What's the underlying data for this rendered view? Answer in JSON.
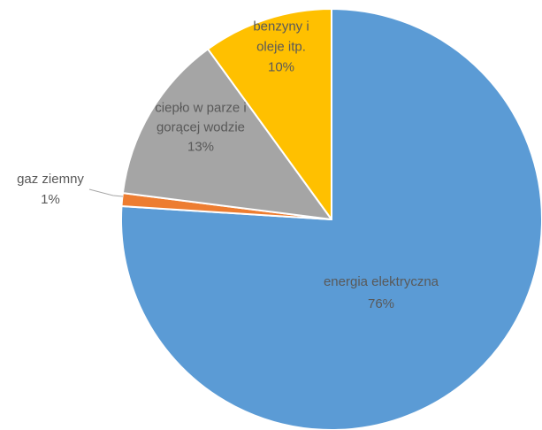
{
  "chart_data": {
    "type": "pie",
    "title": "",
    "slices": [
      {
        "name": "energia elektryczna",
        "value": 76,
        "label": "76%",
        "color": "#5B9BD5",
        "label_color": "#595959",
        "label_lines": [
          "energia elektryczna"
        ]
      },
      {
        "name": "gaz ziemny",
        "value": 1,
        "label": "1%",
        "color": "#ED7D31",
        "label_color": "#595959",
        "label_lines": [
          "gaz ziemny"
        ]
      },
      {
        "name": "ciepło w parze i gorącej wodzie",
        "value": 13,
        "label": "13%",
        "color": "#A5A5A5",
        "label_color": "#595959",
        "label_lines": [
          "ciepło w parze i",
          "gorącej wodzie"
        ]
      },
      {
        "name": "benzyny i oleje itp.",
        "value": 10,
        "label": "10%",
        "color": "#FFC000",
        "label_color": "#595959",
        "label_lines": [
          "benzyny i",
          "oleje itp."
        ]
      }
    ],
    "start_angle": "12 o'clock",
    "direction": "clockwise",
    "legend": "none",
    "slice_border_color": "#ffffff"
  }
}
